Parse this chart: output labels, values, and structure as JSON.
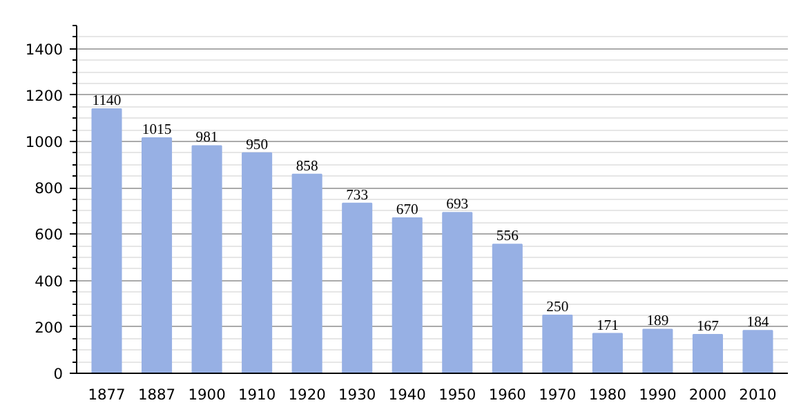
{
  "chart_data": {
    "type": "bar",
    "categories": [
      "1877",
      "1887",
      "1900",
      "1910",
      "1920",
      "1930",
      "1940",
      "1950",
      "1960",
      "1970",
      "1980",
      "1990",
      "2000",
      "2010"
    ],
    "values": [
      1140,
      1015,
      981,
      950,
      858,
      733,
      670,
      693,
      556,
      250,
      171,
      189,
      167,
      184
    ],
    "color": "#97b0e4",
    "ylim": [
      0,
      1500
    ],
    "yticks": [
      0,
      200,
      400,
      600,
      800,
      1000,
      1200,
      1400
    ],
    "grid": "y",
    "data_labels": true
  }
}
